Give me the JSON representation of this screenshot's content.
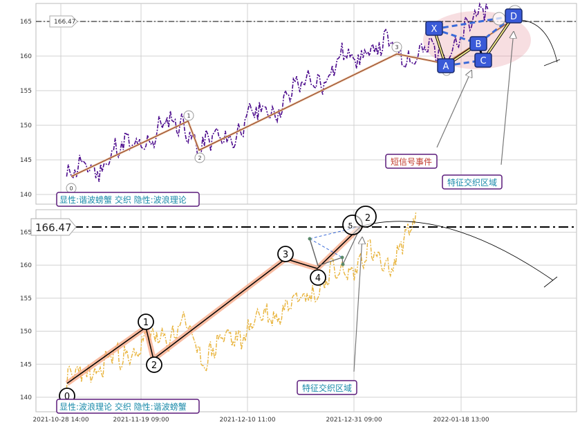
{
  "chart_data": [
    {
      "type": "line",
      "panel": "top",
      "y_ticks": [
        "140",
        "145",
        "150",
        "155",
        "160",
        "165"
      ],
      "ylim": [
        138.6,
        167.6
      ],
      "price_marker": "166.47",
      "wave_labels": [
        "0",
        "1",
        "2",
        "3"
      ],
      "wave_points": [
        {
          "label": "0",
          "x": 0.3,
          "y": 142.2
        },
        {
          "label": "1",
          "x": 6.4,
          "y": 150.9
        },
        {
          "label": "2",
          "x": 7.2,
          "y": 146.2
        },
        {
          "label": "3",
          "x": 15.8,
          "y": 161.3
        },
        {
          "label": "",
          "x": 19.5,
          "y": 160.1
        },
        {
          "label": "",
          "x": 22.0,
          "y": 166.5
        }
      ],
      "harmonic_points": [
        {
          "label": "X",
          "x": 18.6,
          "y": 164.5
        },
        {
          "label": "A",
          "x": 19.2,
          "y": 159.8
        },
        {
          "label": "B",
          "x": 20.8,
          "y": 162.9
        },
        {
          "label": "C",
          "x": 21.0,
          "y": 160.5
        },
        {
          "label": "D",
          "x": 22.4,
          "y": 167.2
        }
      ],
      "annotations": [
        "短信号事件",
        "特征交织区域"
      ],
      "legend": "显性:谐波螃蟹 交织 隐性:波浪理论",
      "line_color": "#4b0a8c",
      "grid": true
    },
    {
      "type": "line",
      "panel": "bottom",
      "y_ticks": [
        "140",
        "145",
        "150",
        "155",
        "160",
        "165"
      ],
      "ylim": [
        137.8,
        168.4
      ],
      "x_ticks": [
        "2021-10-28 14:00",
        "2021-11-19 09:00",
        "2021-12-10 11:00",
        "2021-12-31 09:00",
        "2022-01-18 13:00"
      ],
      "price_marker": "166.47",
      "wave_labels": [
        "0",
        "1",
        "2",
        "3",
        "4",
        "5",
        "2"
      ],
      "wave_points": [
        {
          "label": "0",
          "x": 0.3,
          "y": 142.2
        },
        {
          "label": "1",
          "x": 6.4,
          "y": 150.9
        },
        {
          "label": "2",
          "x": 7.2,
          "y": 146.2
        },
        {
          "label": "3",
          "x": 15.8,
          "y": 161.3
        },
        {
          "label": "4",
          "x": 17.1,
          "y": 160.1
        },
        {
          "label": "5",
          "x": 18.3,
          "y": 166.5
        }
      ],
      "annotations": [
        "特征交织区域"
      ],
      "legend": "显性:波浪理论 交织 隐性:谐波螃蟹",
      "line_color": "#e8b33a",
      "grid": true
    }
  ]
}
